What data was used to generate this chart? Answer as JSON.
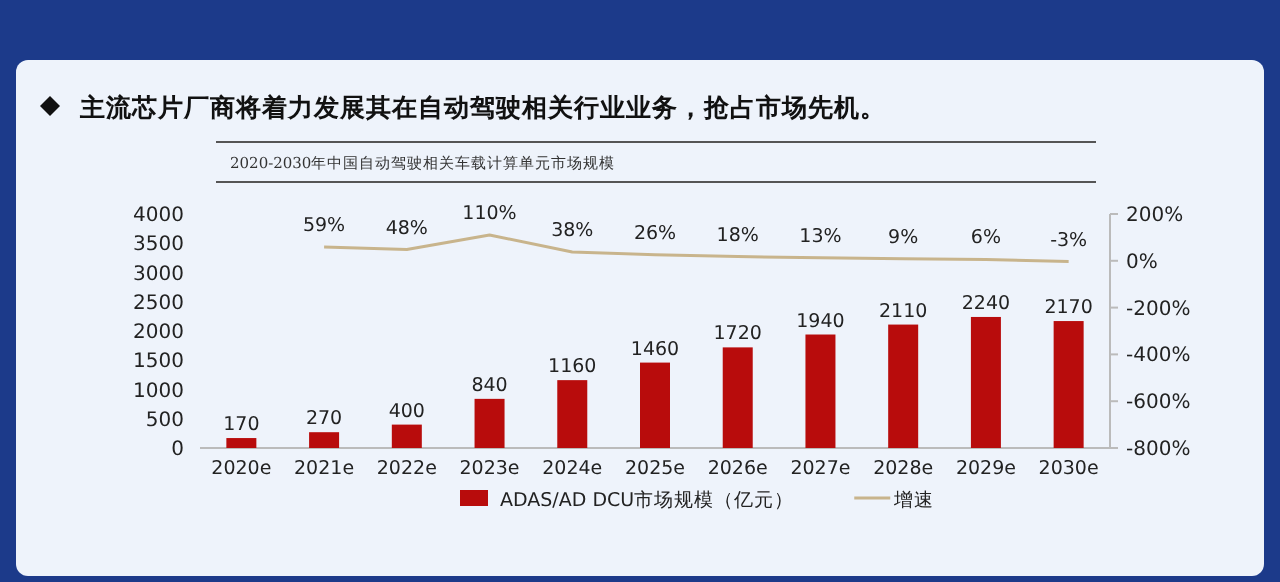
{
  "chart_data": {
    "type": "bar",
    "title": "主流芯片厂商将着力发展其在自动驾驶相关行业业务，抢占市场先机。",
    "subtitle": "2020-2030年中国自动驾驶相关车载计算单元市场规模",
    "categories": [
      "2020e",
      "2021e",
      "2022e",
      "2023e",
      "2024e",
      "2025e",
      "2026e",
      "2027e",
      "2028e",
      "2029e",
      "2030e"
    ],
    "series": [
      {
        "name": "ADAS/AD DCU市场规模（亿元）",
        "color": "#b80c0c",
        "values": [
          170,
          270,
          400,
          840,
          1160,
          1460,
          1720,
          1940,
          2110,
          2240,
          2170
        ],
        "value_labels": [
          "170",
          "270",
          "400",
          "840",
          "1160",
          "1460",
          "1720",
          "1940",
          "2110",
          "2240",
          "2170"
        ]
      },
      {
        "name": "增速",
        "type": "line",
        "axis": "y2",
        "color": "#c8b48c",
        "values": [
          null,
          59,
          48,
          110,
          38,
          26,
          18,
          13,
          9,
          6,
          -3
        ],
        "value_labels": [
          null,
          "59%",
          "48%",
          "110%",
          "38%",
          "26%",
          "18%",
          "13%",
          "9%",
          "6%",
          "-3%"
        ]
      }
    ],
    "ylim": [
      0,
      4000
    ],
    "yticks": [
      0,
      500,
      1000,
      1500,
      2000,
      2500,
      3000,
      3500,
      4000
    ],
    "y2lim": [
      -800,
      200
    ],
    "y2ticks": [
      {
        "value": -800,
        "label": "-800%"
      },
      {
        "value": -600,
        "label": "-600%"
      },
      {
        "value": -400,
        "label": "-400%"
      },
      {
        "value": -200,
        "label": "-200%"
      },
      {
        "value": 0,
        "label": "0%"
      },
      {
        "value": 200,
        "label": "200%"
      }
    ],
    "legend": "bottom",
    "grid": false,
    "marker": "none",
    "line_style": "solid"
  }
}
